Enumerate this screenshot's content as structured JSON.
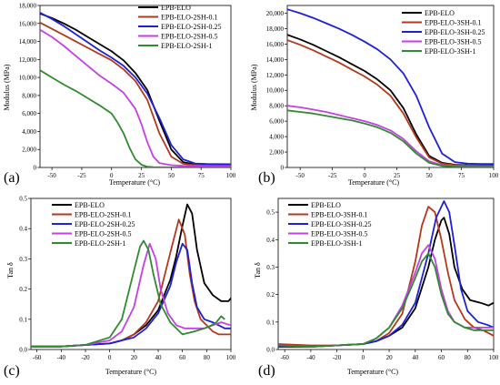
{
  "colors": {
    "EPB-ELO": "#000000",
    "0.1": "#b5381c",
    "0.25": "#1f1fd8",
    "0.5": "#c43fe6",
    "1": "#2e8b2e"
  },
  "chart_data": [
    {
      "panel": "(a)",
      "type": "line",
      "xlabel": "Temperature (°C)",
      "ylabel": "Modulus (MPa)",
      "xlim": [
        -60,
        100
      ],
      "ylim": [
        0,
        18000
      ],
      "xticks": [
        "-50",
        "-25",
        "0",
        "25",
        "50",
        "75",
        "100"
      ],
      "xtick_vals": [
        -50,
        -25,
        0,
        25,
        50,
        75,
        100
      ],
      "yticks": [
        "0",
        "2,000",
        "4,000",
        "6,000",
        "8,000",
        "10,000",
        "12,000",
        "14,000",
        "16,000",
        "18,000"
      ],
      "ytick_vals": [
        0,
        2000,
        4000,
        6000,
        8000,
        10000,
        12000,
        14000,
        16000,
        18000
      ],
      "legend_position": "top-right",
      "series": [
        {
          "name": "EPB-ELO",
          "color_key": "EPB-ELO",
          "x": [
            -60,
            -50,
            -40,
            -30,
            -20,
            -10,
            0,
            10,
            20,
            30,
            40,
            50,
            60,
            70,
            80,
            90,
            100
          ],
          "y": [
            17100,
            16600,
            16000,
            15300,
            14500,
            13700,
            12900,
            11900,
            10500,
            8600,
            5200,
            2000,
            600,
            330,
            260,
            240,
            230
          ]
        },
        {
          "name": "EPB-ELO-2SH-0.1",
          "color_key": "0.1",
          "x": [
            -60,
            -50,
            -40,
            -30,
            -20,
            -10,
            0,
            10,
            20,
            30,
            40,
            50,
            60,
            70,
            80,
            90,
            100
          ],
          "y": [
            16100,
            15400,
            14700,
            14000,
            13300,
            12600,
            11900,
            10900,
            9600,
            7500,
            3800,
            1200,
            400,
            260,
            230,
            220,
            210
          ]
        },
        {
          "name": "EPB-ELO-2SH-0.25",
          "color_key": "0.25",
          "x": [
            -60,
            -50,
            -40,
            -30,
            -20,
            -10,
            0,
            10,
            20,
            30,
            40,
            50,
            60,
            70,
            80,
            90,
            100
          ],
          "y": [
            17200,
            16500,
            15700,
            14800,
            13900,
            13000,
            12200,
            11300,
            10000,
            8200,
            5500,
            2500,
            900,
            450,
            380,
            370,
            360
          ]
        },
        {
          "name": "EPB-ELO-2SH-0.5",
          "color_key": "0.5",
          "x": [
            -60,
            -50,
            -40,
            -30,
            -20,
            -10,
            0,
            10,
            20,
            25,
            30,
            35,
            40,
            50,
            60,
            70,
            80,
            90,
            100
          ],
          "y": [
            15300,
            14500,
            13500,
            12400,
            11300,
            10200,
            9300,
            8300,
            6500,
            4800,
            2800,
            1200,
            500,
            250,
            180,
            160,
            150,
            150,
            150
          ]
        },
        {
          "name": "EPB-ELO-2SH-1",
          "color_key": "1",
          "x": [
            -60,
            -50,
            -40,
            -30,
            -20,
            -10,
            0,
            5,
            10,
            15,
            20,
            25,
            30,
            35,
            40,
            50,
            60,
            70,
            80,
            90,
            100
          ],
          "y": [
            10800,
            10000,
            9200,
            8500,
            7700,
            6900,
            6000,
            5000,
            3800,
            2200,
            900,
            300,
            80,
            30,
            20,
            10,
            10,
            10,
            10,
            10,
            10
          ]
        }
      ]
    },
    {
      "panel": "(b)",
      "type": "line",
      "xlabel": "Temperature (°C)",
      "ylabel": "Modulus (MPa)",
      "xlim": [
        -60,
        100
      ],
      "ylim": [
        0,
        21000
      ],
      "xticks": [
        "-50",
        "-25",
        "0",
        "25",
        "50",
        "75",
        "100"
      ],
      "xtick_vals": [
        -50,
        -25,
        0,
        25,
        50,
        75,
        100
      ],
      "yticks": [
        "0",
        "2,000",
        "4,000",
        "6,000",
        "8,000",
        "10,000",
        "12,000",
        "14,000",
        "16,000",
        "18,000",
        "20,000"
      ],
      "ytick_vals": [
        0,
        2000,
        4000,
        6000,
        8000,
        10000,
        12000,
        14000,
        16000,
        18000,
        20000
      ],
      "legend_position": "top-right",
      "series": [
        {
          "name": "EPB-ELO",
          "color_key": "EPB-ELO",
          "x": [
            -60,
            -50,
            -40,
            -30,
            -20,
            -10,
            0,
            10,
            20,
            30,
            40,
            50,
            60,
            70,
            80,
            90,
            100
          ],
          "y": [
            17200,
            16600,
            15900,
            15100,
            14300,
            13400,
            12500,
            11400,
            10000,
            7700,
            4300,
            1500,
            600,
            350,
            300,
            280,
            270
          ]
        },
        {
          "name": "EPB-ELO-3SH-0.1",
          "color_key": "0.1",
          "x": [
            -60,
            -50,
            -40,
            -30,
            -20,
            -10,
            0,
            10,
            20,
            30,
            40,
            50,
            60,
            70,
            80,
            90,
            100
          ],
          "y": [
            16500,
            15900,
            15200,
            14400,
            13600,
            12700,
            11800,
            10700,
            9300,
            7000,
            3900,
            1300,
            500,
            300,
            250,
            240,
            230
          ]
        },
        {
          "name": "EPB-ELO-3SH-0.25",
          "color_key": "0.25",
          "x": [
            -60,
            -50,
            -40,
            -30,
            -20,
            -10,
            0,
            10,
            20,
            30,
            40,
            50,
            60,
            70,
            80,
            90,
            100
          ],
          "y": [
            20500,
            20000,
            19400,
            18700,
            18000,
            17200,
            16300,
            15300,
            14000,
            12200,
            9300,
            5200,
            1800,
            700,
            500,
            460,
            450
          ]
        },
        {
          "name": "EPB-ELO-3SH-0.5",
          "color_key": "0.5",
          "x": [
            -60,
            -50,
            -40,
            -30,
            -20,
            -10,
            0,
            10,
            20,
            30,
            40,
            50,
            60,
            70,
            80,
            90,
            100
          ],
          "y": [
            8000,
            7800,
            7500,
            7200,
            6800,
            6400,
            6000,
            5500,
            4800,
            3700,
            2100,
            800,
            300,
            200,
            170,
            160,
            150
          ]
        },
        {
          "name": "EPB-ELO-3SH-1",
          "color_key": "1",
          "x": [
            -60,
            -50,
            -40,
            -30,
            -20,
            -10,
            0,
            10,
            20,
            30,
            40,
            50,
            60,
            70,
            80,
            90,
            100
          ],
          "y": [
            7400,
            7200,
            7000,
            6700,
            6400,
            6100,
            5700,
            5200,
            4500,
            3400,
            1800,
            600,
            200,
            120,
            100,
            100,
            100
          ]
        }
      ]
    },
    {
      "panel": "(c)",
      "type": "line",
      "xlabel": "Temperature (°C)",
      "ylabel": "Tan δ",
      "xlim": [
        -65,
        100
      ],
      "ylim": [
        0,
        0.5
      ],
      "xticks": [
        "-60",
        "-40",
        "-20",
        "0",
        "20",
        "40",
        "60",
        "80",
        "100"
      ],
      "xtick_vals": [
        -60,
        -40,
        -20,
        0,
        20,
        40,
        60,
        80,
        100
      ],
      "yticks": [
        "0.0",
        "0.1",
        "0.2",
        "0.3",
        "0.4",
        "0.5"
      ],
      "ytick_vals": [
        0,
        0.1,
        0.2,
        0.3,
        0.4,
        0.5
      ],
      "legend_position": "top-left",
      "series": [
        {
          "name": "EPB-ELO",
          "color_key": "EPB-ELO",
          "x": [
            -65,
            -40,
            -20,
            0,
            10,
            20,
            30,
            40,
            50,
            55,
            60,
            64,
            68,
            72,
            78,
            85,
            92,
            98,
            100
          ],
          "y": [
            0.01,
            0.01,
            0.015,
            0.02,
            0.03,
            0.05,
            0.08,
            0.13,
            0.23,
            0.31,
            0.41,
            0.48,
            0.45,
            0.33,
            0.22,
            0.18,
            0.16,
            0.16,
            0.17
          ]
        },
        {
          "name": "EPB-ELO-2SH-0.1",
          "color_key": "0.1",
          "x": [
            -65,
            -40,
            -20,
            0,
            10,
            20,
            30,
            40,
            50,
            57,
            62,
            66,
            70,
            75,
            80,
            85,
            90,
            95,
            100
          ],
          "y": [
            0.01,
            0.01,
            0.015,
            0.02,
            0.03,
            0.05,
            0.09,
            0.16,
            0.32,
            0.43,
            0.38,
            0.25,
            0.16,
            0.1,
            0.08,
            0.06,
            0.05,
            0.05,
            0.05
          ]
        },
        {
          "name": "EPB-ELO-2SH-0.25",
          "color_key": "0.25",
          "x": [
            -65,
            -40,
            -20,
            0,
            10,
            20,
            30,
            40,
            50,
            55,
            60,
            64,
            68,
            72,
            78,
            85,
            90,
            95,
            100
          ],
          "y": [
            0.01,
            0.01,
            0.015,
            0.02,
            0.03,
            0.04,
            0.07,
            0.12,
            0.21,
            0.29,
            0.35,
            0.33,
            0.22,
            0.14,
            0.1,
            0.09,
            0.08,
            0.07,
            0.07
          ]
        },
        {
          "name": "EPB-ELO-2SH-0.5",
          "color_key": "0.5",
          "x": [
            -65,
            -40,
            -20,
            0,
            10,
            20,
            28,
            33,
            38,
            42,
            48,
            55,
            62,
            70,
            78,
            85,
            92,
            100
          ],
          "y": [
            0.01,
            0.01,
            0.015,
            0.03,
            0.06,
            0.14,
            0.28,
            0.35,
            0.3,
            0.2,
            0.12,
            0.08,
            0.07,
            0.07,
            0.07,
            0.08,
            0.09,
            0.08
          ]
        },
        {
          "name": "EPB-ELO-2SH-1",
          "color_key": "1",
          "x": [
            -65,
            -40,
            -20,
            0,
            10,
            20,
            25,
            28,
            32,
            36,
            42,
            50,
            60,
            70,
            78,
            84,
            88,
            92,
            95
          ],
          "y": [
            0.01,
            0.01,
            0.015,
            0.04,
            0.1,
            0.26,
            0.34,
            0.36,
            0.33,
            0.25,
            0.15,
            0.09,
            0.05,
            0.06,
            0.07,
            0.08,
            0.09,
            0.11,
            0.1
          ]
        }
      ]
    },
    {
      "panel": "(d)",
      "type": "line",
      "xlabel": "Temperature (°C)",
      "ylabel": "Tan δ",
      "xlim": [
        -65,
        100
      ],
      "ylim": [
        0,
        0.55
      ],
      "xticks": [
        "-60",
        "-40",
        "-20",
        "0",
        "20",
        "40",
        "60",
        "80",
        "100"
      ],
      "xtick_vals": [
        -60,
        -40,
        -20,
        0,
        20,
        40,
        60,
        80,
        100
      ],
      "yticks": [
        "0.0",
        "0.1",
        "0.2",
        "0.3",
        "0.4",
        "0.5"
      ],
      "ytick_vals": [
        0,
        0.1,
        0.2,
        0.3,
        0.4,
        0.5
      ],
      "legend_position": "top-left",
      "series": [
        {
          "name": "EPB-ELO",
          "color_key": "EPB-ELO",
          "x": [
            -65,
            -40,
            -20,
            0,
            10,
            20,
            30,
            40,
            50,
            55,
            60,
            62,
            66,
            70,
            76,
            82,
            90,
            96,
            100
          ],
          "y": [
            0.01,
            0.01,
            0.015,
            0.02,
            0.03,
            0.05,
            0.08,
            0.15,
            0.3,
            0.4,
            0.47,
            0.48,
            0.42,
            0.3,
            0.22,
            0.18,
            0.17,
            0.16,
            0.17
          ]
        },
        {
          "name": "EPB-ELO-3SH-0.1",
          "color_key": "0.1",
          "x": [
            -65,
            -40,
            -20,
            0,
            10,
            20,
            30,
            40,
            45,
            50,
            55,
            60,
            65,
            70,
            78,
            85,
            92,
            100
          ],
          "y": [
            0.02,
            0.015,
            0.015,
            0.02,
            0.03,
            0.06,
            0.13,
            0.32,
            0.45,
            0.52,
            0.5,
            0.4,
            0.28,
            0.18,
            0.11,
            0.08,
            0.07,
            0.05
          ]
        },
        {
          "name": "EPB-ELO-3SH-0.25",
          "color_key": "0.25",
          "x": [
            -65,
            -40,
            -20,
            0,
            10,
            20,
            30,
            40,
            50,
            56,
            62,
            66,
            70,
            75,
            80,
            88,
            95,
            100
          ],
          "y": [
            0.01,
            0.01,
            0.015,
            0.02,
            0.03,
            0.05,
            0.09,
            0.17,
            0.35,
            0.48,
            0.54,
            0.5,
            0.38,
            0.22,
            0.14,
            0.1,
            0.09,
            0.08
          ]
        },
        {
          "name": "EPB-ELO-3SH-0.5",
          "color_key": "0.5",
          "x": [
            -65,
            -40,
            -20,
            0,
            10,
            20,
            30,
            40,
            45,
            50,
            55,
            60,
            65,
            70,
            78,
            85,
            92,
            100
          ],
          "y": [
            0.015,
            0.01,
            0.015,
            0.02,
            0.04,
            0.08,
            0.16,
            0.28,
            0.35,
            0.38,
            0.33,
            0.22,
            0.14,
            0.1,
            0.08,
            0.08,
            0.08,
            0.08
          ]
        },
        {
          "name": "EPB-ELO-3SH-1",
          "color_key": "1",
          "x": [
            -65,
            -40,
            -20,
            0,
            10,
            20,
            30,
            40,
            45,
            50,
            55,
            60,
            65,
            70,
            78,
            85,
            92,
            100
          ],
          "y": [
            0.015,
            0.01,
            0.015,
            0.02,
            0.04,
            0.08,
            0.15,
            0.26,
            0.32,
            0.35,
            0.3,
            0.2,
            0.13,
            0.1,
            0.08,
            0.07,
            0.07,
            0.07
          ]
        }
      ]
    }
  ]
}
